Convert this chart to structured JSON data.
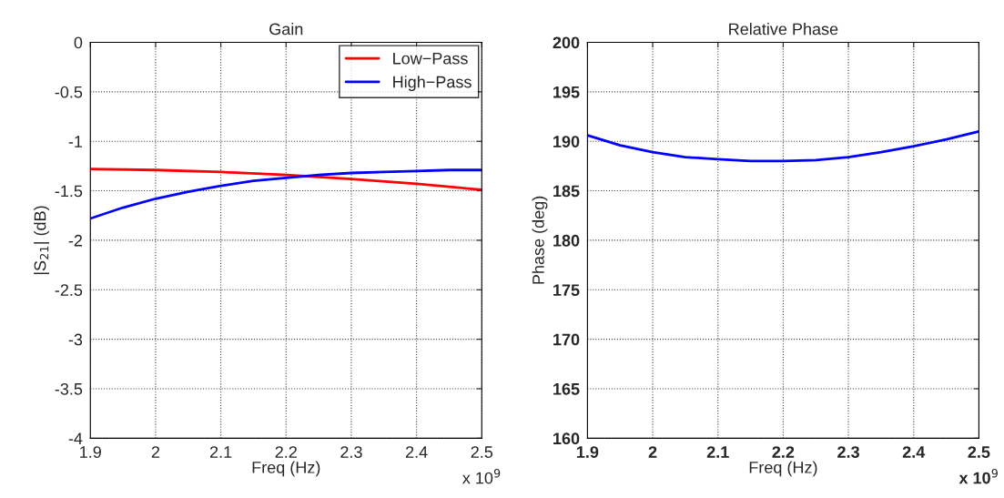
{
  "chart_data": [
    {
      "type": "line",
      "title": "Gain",
      "xlabel": "Freq (Hz)",
      "ylabel": "|S$_{21}$| (dB)",
      "annotations": [
        "x 10$^{9}$"
      ],
      "xlim": [
        1.9,
        2.5
      ],
      "xticks": [
        1.9,
        2,
        2.1,
        2.2,
        2.3,
        2.4,
        2.5
      ],
      "ylim": [
        -4,
        0
      ],
      "yticks": [
        -4,
        -3.5,
        -3,
        -2.5,
        -2,
        -1.5,
        -1,
        -0.5,
        0
      ],
      "grid": true,
      "legend": "top right",
      "series": [
        {
          "name": "Low−Pass",
          "color": "#ff0000",
          "x": [
            1.9,
            2.0,
            2.1,
            2.2,
            2.3,
            2.4,
            2.5
          ],
          "values": [
            -1.28,
            -1.29,
            -1.31,
            -1.34,
            -1.38,
            -1.43,
            -1.49
          ]
        },
        {
          "name": "High−Pass",
          "color": "#0000ff",
          "x": [
            1.9,
            1.95,
            2.0,
            2.05,
            2.1,
            2.15,
            2.2,
            2.25,
            2.3,
            2.35,
            2.4,
            2.45,
            2.5
          ],
          "values": [
            -1.78,
            -1.67,
            -1.58,
            -1.51,
            -1.45,
            -1.4,
            -1.37,
            -1.34,
            -1.32,
            -1.31,
            -1.3,
            -1.29,
            -1.29
          ]
        }
      ]
    },
    {
      "type": "line",
      "title": "Relative Phase",
      "xlabel": "Freq (Hz)",
      "ylabel": "Phase (deg)",
      "annotations": [
        "x 10$^{9}$"
      ],
      "xlim": [
        1.9,
        2.5
      ],
      "xticks": [
        1.9,
        2,
        2.1,
        2.2,
        2.3,
        2.4,
        2.5
      ],
      "ylim": [
        160,
        200
      ],
      "yticks": [
        160,
        165,
        170,
        175,
        180,
        185,
        190,
        195,
        200
      ],
      "grid": true,
      "series": [
        {
          "color": "#0000ff",
          "x": [
            1.9,
            1.95,
            2.0,
            2.05,
            2.1,
            2.15,
            2.2,
            2.25,
            2.3,
            2.35,
            2.4,
            2.45,
            2.5
          ],
          "values": [
            190.6,
            189.6,
            188.9,
            188.4,
            188.2,
            188.0,
            188.0,
            188.1,
            188.4,
            188.9,
            189.5,
            190.2,
            191.0
          ]
        }
      ]
    }
  ]
}
